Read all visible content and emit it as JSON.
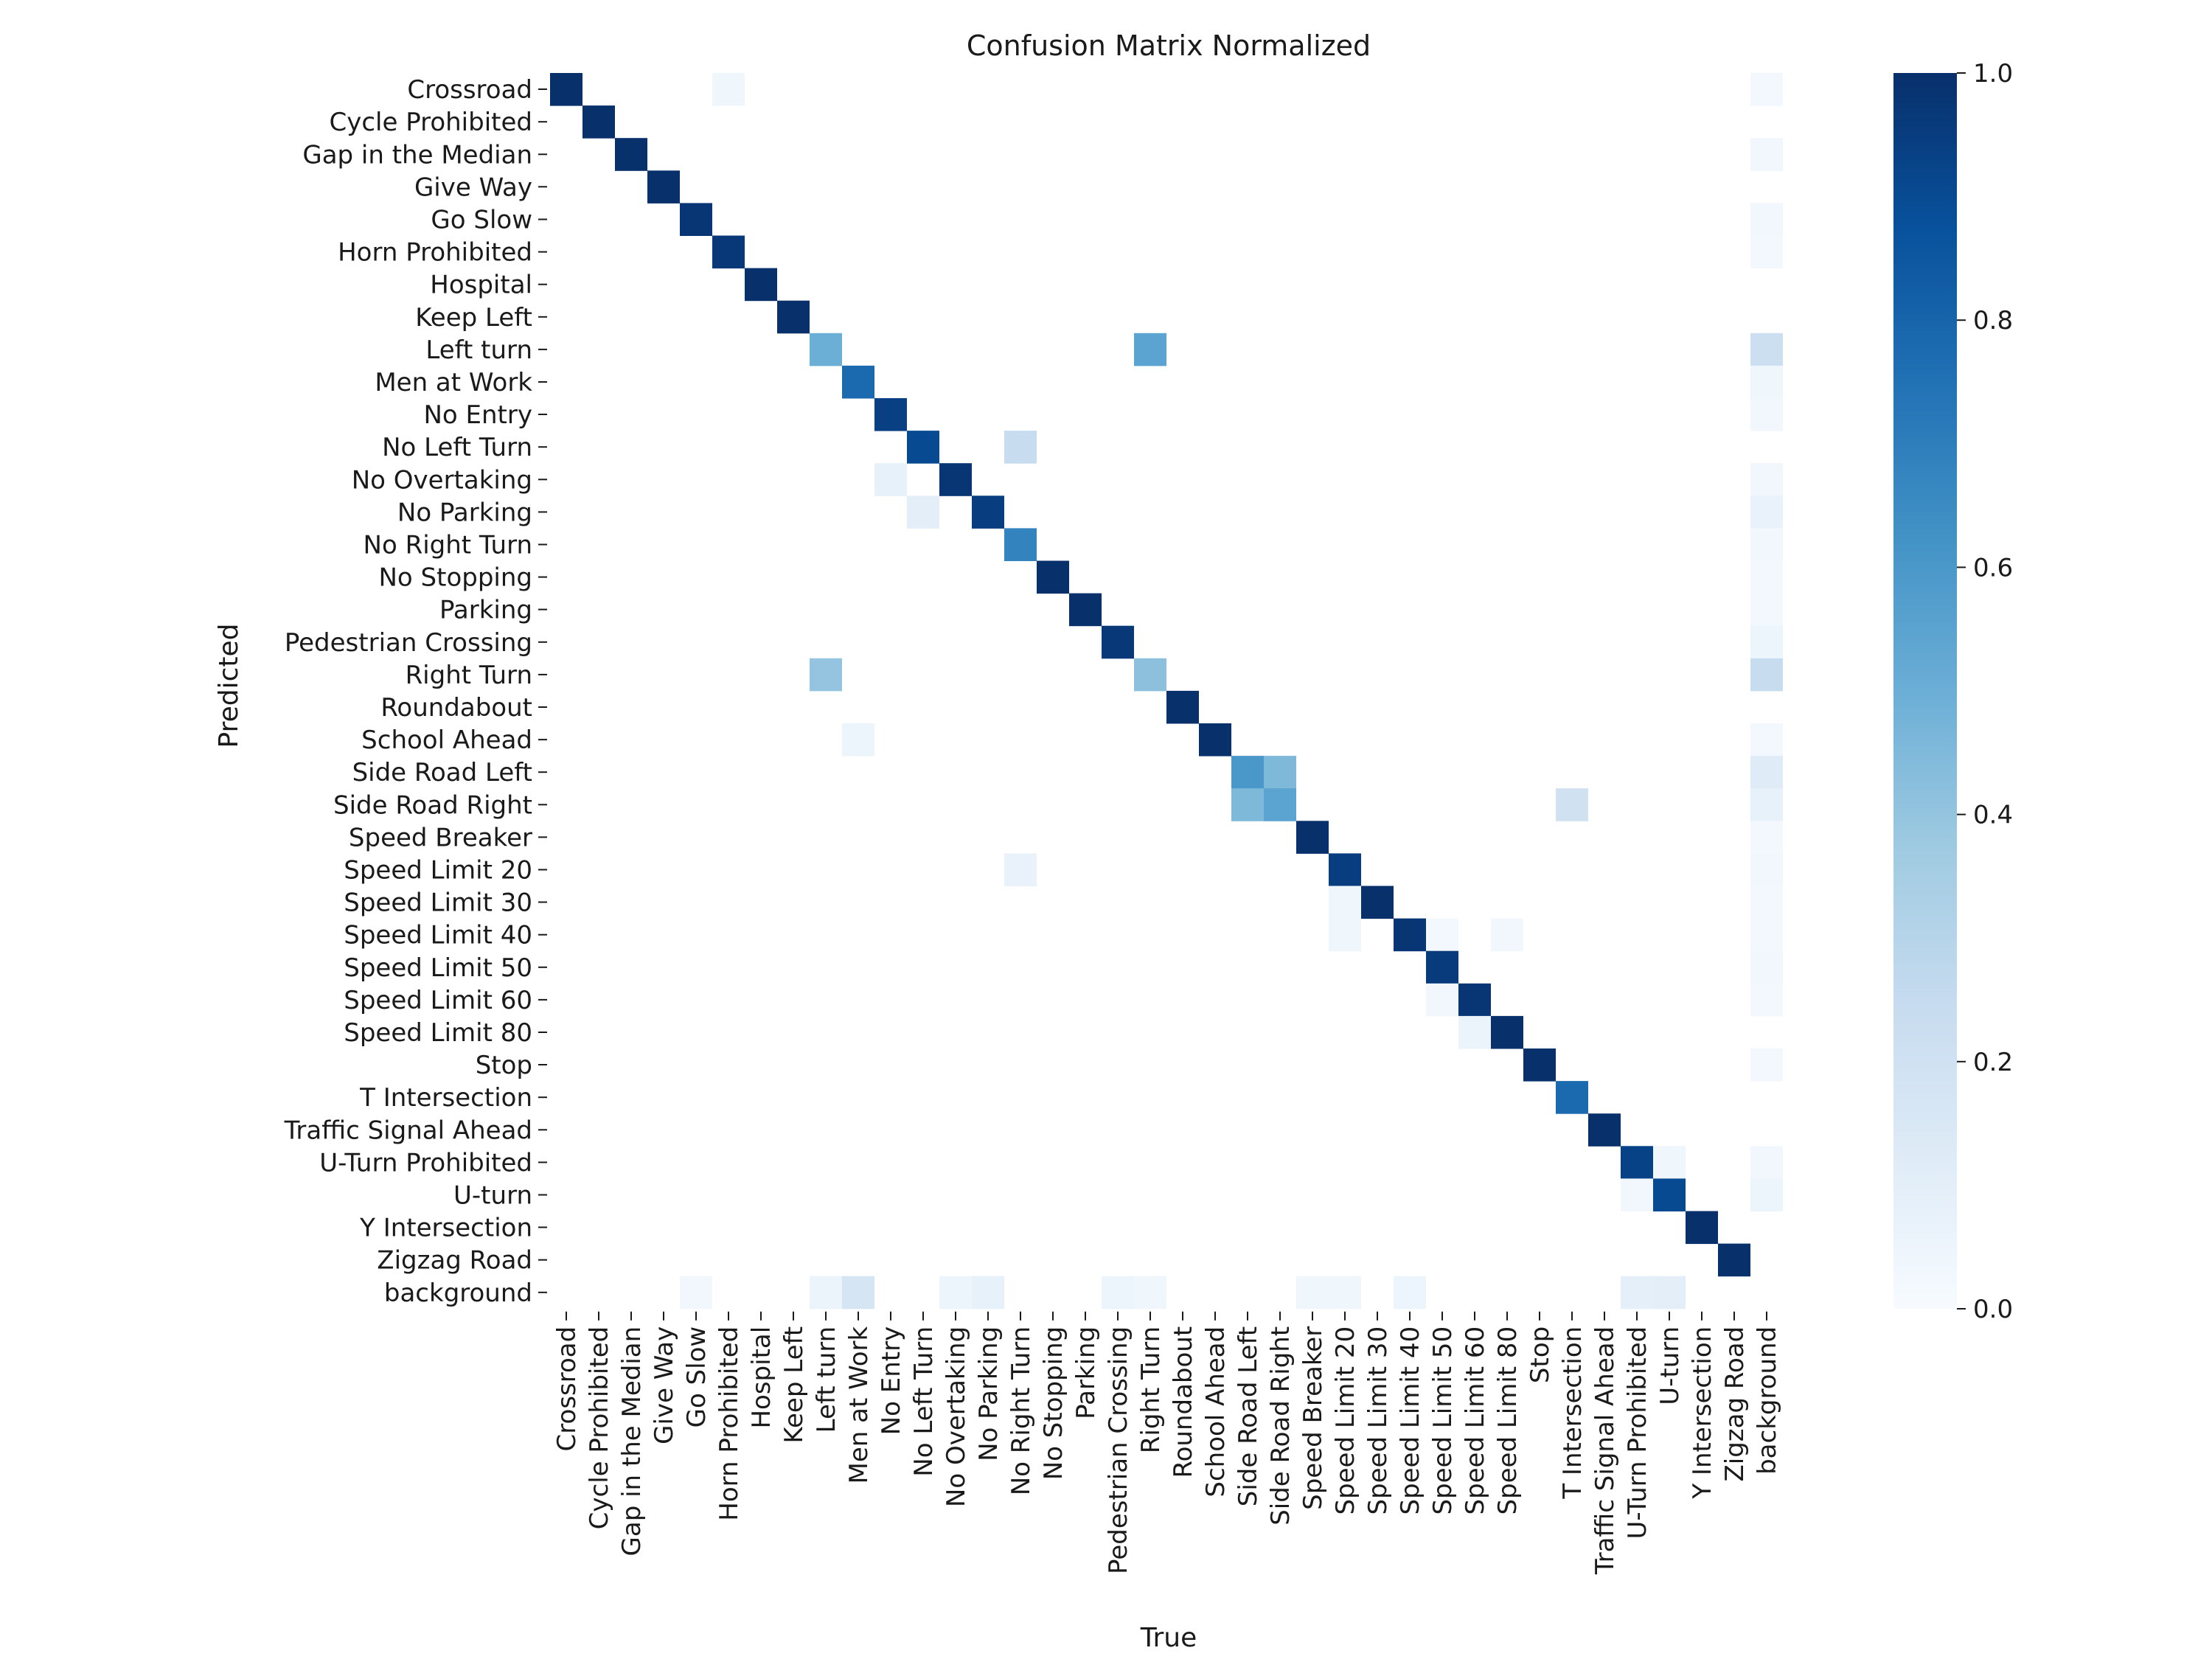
{
  "chart_data": {
    "type": "heatmap",
    "title": "Confusion Matrix Normalized",
    "xlabel": "True",
    "ylabel": "Predicted",
    "x_categories": [
      "Crossroad",
      "Cycle Prohibited",
      "Gap in the Median",
      "Give Way",
      "Go Slow",
      "Horn Prohibited",
      "Hospital",
      "Keep Left",
      "Left turn",
      "Men at Work",
      "No Entry",
      "No Left Turn",
      "No Overtaking",
      "No Parking",
      "No Right Turn",
      "No Stopping",
      "Parking",
      "Pedestrian Crossing",
      "Right Turn",
      "Roundabout",
      "School Ahead",
      "Side Road Left",
      "Side Road Right",
      "Speed Breaker",
      "Speed Limit 20",
      "Speed Limit 30",
      "Speed Limit 40",
      "Speed Limit 50",
      "Speed Limit 60",
      "Speed Limit 80",
      "Stop",
      "T Intersection",
      "Traffic Signal Ahead",
      "U-Turn Prohibited",
      "U-turn",
      "Y Intersection",
      "Zigzag Road",
      "background"
    ],
    "y_categories": [
      "Crossroad",
      "Cycle Prohibited",
      "Gap in the Median",
      "Give Way",
      "Go Slow",
      "Horn Prohibited",
      "Hospital",
      "Keep Left",
      "Left turn",
      "Men at Work",
      "No Entry",
      "No Left Turn",
      "No Overtaking",
      "No Parking",
      "No Right Turn",
      "No Stopping",
      "Parking",
      "Pedestrian Crossing",
      "Right Turn",
      "Roundabout",
      "School Ahead",
      "Side Road Left",
      "Side Road Right",
      "Speed Breaker",
      "Speed Limit 20",
      "Speed Limit 30",
      "Speed Limit 40",
      "Speed Limit 50",
      "Speed Limit 60",
      "Speed Limit 80",
      "Stop",
      "T Intersection",
      "Traffic Signal Ahead",
      "U-Turn Prohibited",
      "U-turn",
      "Y Intersection",
      "Zigzag Road",
      "background"
    ],
    "cells": [
      [
        0,
        0,
        1.0
      ],
      [
        0,
        5,
        0.04
      ],
      [
        0,
        37,
        0.02
      ],
      [
        1,
        1,
        1.0
      ],
      [
        2,
        2,
        1.0
      ],
      [
        2,
        37,
        0.03
      ],
      [
        3,
        3,
        1.0
      ],
      [
        4,
        4,
        0.98
      ],
      [
        4,
        37,
        0.03
      ],
      [
        5,
        5,
        0.97
      ],
      [
        5,
        37,
        0.02
      ],
      [
        6,
        6,
        1.0
      ],
      [
        7,
        7,
        1.0
      ],
      [
        8,
        8,
        0.5
      ],
      [
        8,
        18,
        0.55
      ],
      [
        8,
        37,
        0.22
      ],
      [
        9,
        9,
        0.78
      ],
      [
        9,
        37,
        0.04
      ],
      [
        10,
        10,
        0.94
      ],
      [
        10,
        37,
        0.03
      ],
      [
        11,
        11,
        0.9
      ],
      [
        11,
        14,
        0.24
      ],
      [
        12,
        10,
        0.08
      ],
      [
        12,
        12,
        0.98
      ],
      [
        12,
        37,
        0.03
      ],
      [
        13,
        11,
        0.1
      ],
      [
        13,
        13,
        0.95
      ],
      [
        13,
        37,
        0.07
      ],
      [
        14,
        14,
        0.68
      ],
      [
        14,
        37,
        0.03
      ],
      [
        15,
        15,
        1.0
      ],
      [
        15,
        37,
        0.02
      ],
      [
        16,
        16,
        1.0
      ],
      [
        16,
        37,
        0.02
      ],
      [
        17,
        17,
        0.97
      ],
      [
        17,
        37,
        0.05
      ],
      [
        18,
        8,
        0.4
      ],
      [
        18,
        18,
        0.42
      ],
      [
        18,
        37,
        0.24
      ],
      [
        19,
        19,
        1.0
      ],
      [
        20,
        20,
        1.0
      ],
      [
        20,
        9,
        0.05
      ],
      [
        20,
        37,
        0.02
      ],
      [
        21,
        21,
        0.6
      ],
      [
        21,
        22,
        0.45
      ],
      [
        21,
        37,
        0.12
      ],
      [
        22,
        21,
        0.45
      ],
      [
        22,
        22,
        0.55
      ],
      [
        22,
        31,
        0.2
      ],
      [
        22,
        37,
        0.08
      ],
      [
        23,
        23,
        1.0
      ],
      [
        23,
        37,
        0.02
      ],
      [
        24,
        24,
        0.95
      ],
      [
        24,
        14,
        0.07
      ],
      [
        24,
        37,
        0.03
      ],
      [
        25,
        25,
        1.0
      ],
      [
        25,
        24,
        0.04
      ],
      [
        25,
        37,
        0.02
      ],
      [
        26,
        26,
        0.98
      ],
      [
        26,
        24,
        0.04
      ],
      [
        26,
        27,
        0.02
      ],
      [
        26,
        29,
        0.03
      ],
      [
        26,
        37,
        0.02
      ],
      [
        27,
        27,
        0.96
      ],
      [
        27,
        37,
        0.03
      ],
      [
        28,
        28,
        0.98
      ],
      [
        28,
        27,
        0.03
      ],
      [
        28,
        37,
        0.02
      ],
      [
        29,
        29,
        1.0
      ],
      [
        29,
        28,
        0.06
      ],
      [
        30,
        30,
        1.0
      ],
      [
        30,
        37,
        0.02
      ],
      [
        31,
        31,
        0.78
      ],
      [
        32,
        32,
        1.0
      ],
      [
        33,
        33,
        0.93
      ],
      [
        33,
        34,
        0.04
      ],
      [
        33,
        37,
        0.03
      ],
      [
        34,
        34,
        0.9
      ],
      [
        34,
        33,
        0.03
      ],
      [
        34,
        37,
        0.05
      ],
      [
        35,
        35,
        1.0
      ],
      [
        36,
        36,
        1.0
      ],
      [
        37,
        4,
        0.03
      ],
      [
        37,
        8,
        0.06
      ],
      [
        37,
        9,
        0.17
      ],
      [
        37,
        12,
        0.05
      ],
      [
        37,
        13,
        0.08
      ],
      [
        37,
        17,
        0.05
      ],
      [
        37,
        18,
        0.04
      ],
      [
        37,
        23,
        0.04
      ],
      [
        37,
        24,
        0.04
      ],
      [
        37,
        26,
        0.05
      ],
      [
        37,
        33,
        0.09
      ],
      [
        37,
        34,
        0.1
      ]
    ],
    "colorbar": {
      "range": [
        0.0,
        1.0
      ],
      "ticks": [
        "0.0",
        "0.2",
        "0.4",
        "0.6",
        "0.8",
        "1.0"
      ],
      "colormap": "Blues",
      "low_color": "#f7fbff",
      "high_color": "#08306b"
    },
    "grid": false,
    "legend": "colorbar-right"
  }
}
